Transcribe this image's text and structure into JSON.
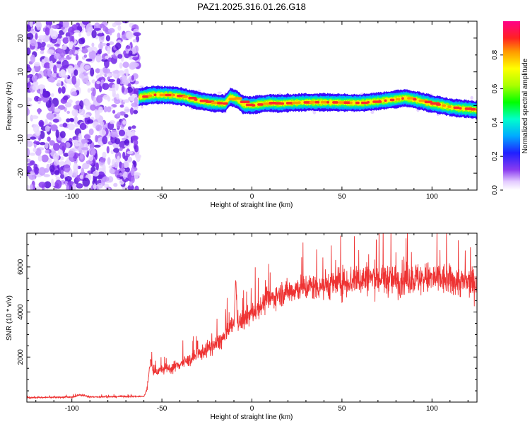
{
  "title": "PAZ1.2025.316.01.26.G18",
  "chart_data": [
    {
      "type": "heatmap",
      "title": "PAZ1.2025.316.01.26.G18",
      "xlabel": "Height of straight line (km)",
      "ylabel": "Frequency (Hz)",
      "xlim": [
        -125,
        125
      ],
      "ylim": [
        -25,
        25
      ],
      "xticks": [
        -100,
        -50,
        0,
        50,
        100
      ],
      "yticks": [
        -20,
        -10,
        0,
        10,
        20
      ],
      "xtick_labels": [
        "-100",
        "-50",
        "0",
        "50",
        "100"
      ],
      "ytick_labels": [
        "-20",
        "-10",
        "0",
        "10",
        "20"
      ],
      "noise_region_x": [
        -125,
        -63
      ],
      "signal_track": {
        "x": [
          -63,
          -55,
          -45,
          -38,
          -30,
          -22,
          -15,
          -12,
          -8,
          -5,
          0,
          5,
          10,
          15,
          20,
          30,
          40,
          50,
          60,
          70,
          80,
          85,
          90,
          95,
          100,
          105,
          110,
          115,
          120,
          125
        ],
        "freq": [
          2.5,
          3.2,
          3.1,
          2.6,
          1.5,
          0.8,
          0.6,
          2.6,
          1.8,
          0.3,
          0.1,
          0.5,
          0.8,
          0.6,
          0.8,
          1.0,
          1.0,
          0.9,
          0.8,
          1.3,
          1.9,
          2.3,
          1.8,
          1.2,
          0.5,
          0.1,
          -0.5,
          -0.8,
          -1.0,
          -1.3
        ]
      },
      "colorbar": {
        "label": "Normalized spectral amplitude",
        "range": [
          0,
          1
        ],
        "ticks": [
          0.0,
          0.2,
          0.4,
          0.6,
          0.8
        ],
        "tick_labels": [
          "0.0",
          "0.2",
          "0.4",
          "0.6",
          "0.8"
        ]
      }
    },
    {
      "type": "line",
      "xlabel": "Height of straight line (km)",
      "ylabel": "SNR (10 * v/v)",
      "xlim": [
        -125,
        125
      ],
      "ylim": [
        0,
        7500
      ],
      "xticks": [
        -100,
        -50,
        0,
        50,
        100
      ],
      "yticks": [
        2000,
        4000,
        6000
      ],
      "xtick_labels": [
        "-100",
        "-50",
        "0",
        "50",
        "100"
      ],
      "ytick_labels": [
        "2000",
        "4000",
        "6000"
      ],
      "series": [
        {
          "name": "SNR",
          "color": "#ee3333",
          "x": [
            -125,
            -100,
            -95,
            -90,
            -70,
            -60,
            -58,
            -57,
            -56,
            -55,
            -50,
            -45,
            -40,
            -35,
            -30,
            -25,
            -20,
            -15,
            -12,
            -10,
            -9,
            -8,
            -5,
            0,
            5,
            10,
            15,
            20,
            25,
            30,
            35,
            40,
            45,
            50,
            55,
            60,
            65,
            70,
            75,
            80,
            85,
            90,
            95,
            100,
            105,
            110,
            115,
            120,
            125
          ],
          "y": [
            200,
            220,
            330,
            230,
            250,
            250,
            600,
            1500,
            1900,
            1300,
            1450,
            1500,
            1700,
            1850,
            2100,
            2350,
            2550,
            2900,
            3300,
            3500,
            5500,
            3500,
            3600,
            3950,
            4300,
            4550,
            4800,
            4900,
            5050,
            5100,
            5150,
            5200,
            5250,
            5300,
            5400,
            5450,
            5500,
            5500,
            5450,
            5400,
            5450,
            5500,
            5450,
            5500,
            5450,
            5400,
            5350,
            5300,
            5300
          ],
          "spread": [
            40,
            50,
            80,
            50,
            50,
            50,
            150,
            200,
            300,
            250,
            300,
            350,
            400,
            400,
            450,
            500,
            550,
            600,
            600,
            600,
            200,
            600,
            650,
            700,
            700,
            700,
            750,
            800,
            850,
            850,
            900,
            950,
            950,
            1000,
            1000,
            1050,
            1050,
            1100,
            1050,
            1050,
            1050,
            1050,
            1050,
            1050,
            1050,
            1000,
            1000,
            950,
            950
          ]
        }
      ]
    }
  ]
}
